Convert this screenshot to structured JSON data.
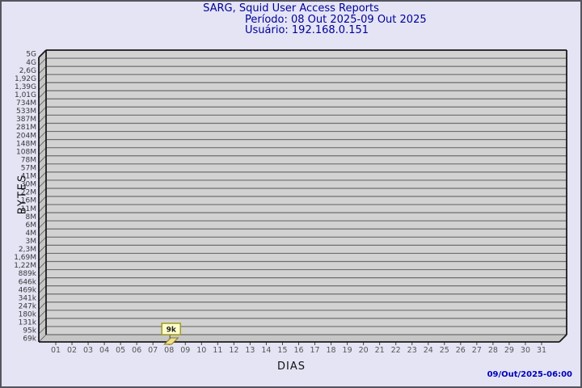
{
  "page": {
    "background": "#e4e4f5",
    "border_color": "#55555f"
  },
  "header": {
    "title": "SARG, Squid User Access Reports",
    "period_line": "Período: 08 Out 2025-09 Out 2025",
    "user_line": "Usuário: 192.168.0.151",
    "title_color": "#000099"
  },
  "footer": {
    "timestamp": "09/Out/2025-06:00",
    "timestamp_color": "#0000bb"
  },
  "chart_data": {
    "type": "bar",
    "title": "SARG, Squid User Access Reports",
    "subtitle": [
      "Período: 08 Out 2025-09 Out 2025",
      "Usuário: 192.168.0.151"
    ],
    "xlabel": "DIAS",
    "ylabel": "BYTES",
    "y_scale": "log",
    "legend": "none",
    "grid": "horizontal",
    "y_tick_labels": [
      "5G",
      "4G",
      "2,6G",
      "1,92G",
      "1,39G",
      "1,01G",
      "734M",
      "533M",
      "387M",
      "281M",
      "204M",
      "148M",
      "108M",
      "78M",
      "57M",
      "41M",
      "30M",
      "22M",
      "16M",
      "11M",
      "8M",
      "6M",
      "4M",
      "3M",
      "2,3M",
      "1,69M",
      "1,22M",
      "889k",
      "646k",
      "469k",
      "341k",
      "247k",
      "180k",
      "131k",
      "95k",
      "69k"
    ],
    "x_tick_labels": [
      "01",
      "02",
      "03",
      "04",
      "05",
      "06",
      "07",
      "08",
      "09",
      "10",
      "11",
      "12",
      "13",
      "14",
      "15",
      "16",
      "17",
      "18",
      "19",
      "20",
      "21",
      "22",
      "23",
      "24",
      "25",
      "26",
      "27",
      "28",
      "29",
      "30",
      "31"
    ],
    "points": [
      {
        "day": "08",
        "label": "9k"
      }
    ],
    "colors": {
      "plot_bg": "#d2d2d2",
      "wall": "#c6c6c6",
      "grid": "#6e6e6e",
      "axis": "#1a1a1a",
      "bar_fill": "#efdf8e",
      "bar_stroke": "#8a7a10",
      "point_label_bg": "#ffffcc",
      "point_label_border": "#a09a20",
      "point_label_text": "#222222",
      "tick_text": "#555555",
      "ytick_text": "#383838"
    }
  }
}
